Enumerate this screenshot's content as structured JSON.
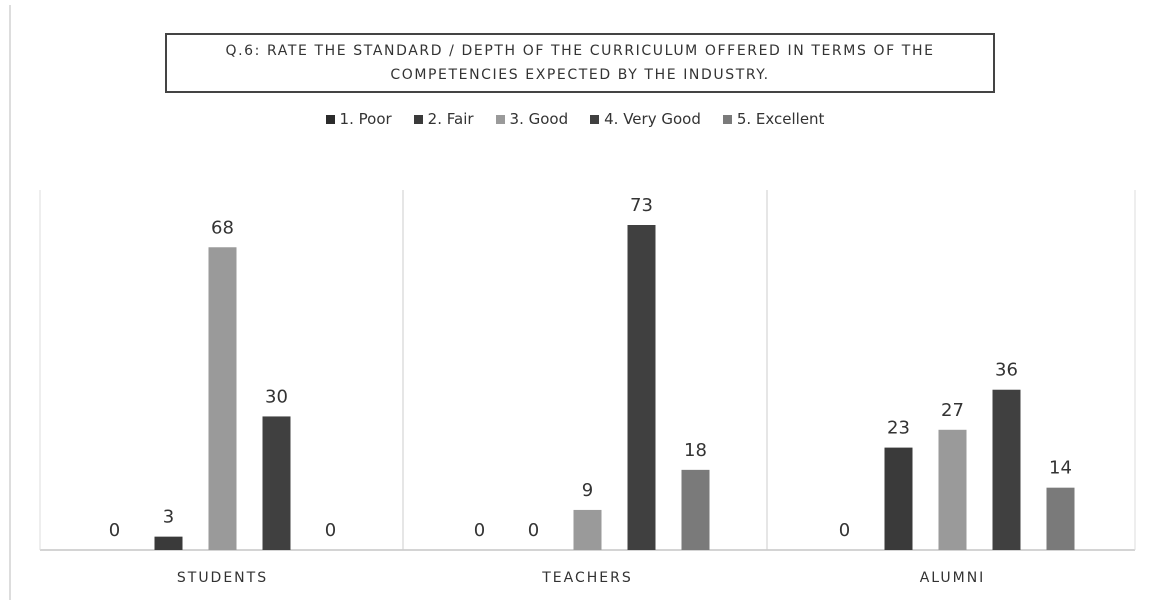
{
  "chart_data": {
    "type": "bar",
    "title": "Q.6: RATE THE STANDARD / DEPTH OF THE CURRICULUM OFFERED IN TERMS OF THE COMPETENCIES EXPECTED BY THE INDUSTRY.",
    "categories": [
      "STUDENTS",
      "TEACHERS",
      "ALUMNI"
    ],
    "series": [
      {
        "name": "1. Poor",
        "color": "#2b2b2b",
        "values": [
          0,
          0,
          0
        ]
      },
      {
        "name": "2. Fair",
        "color": "#3a3a3a",
        "values": [
          3,
          0,
          23
        ]
      },
      {
        "name": "3. Good",
        "color": "#9a9a9a",
        "values": [
          68,
          9,
          27
        ]
      },
      {
        "name": "4. Very Good",
        "color": "#404040",
        "values": [
          30,
          73,
          36
        ]
      },
      {
        "name": "5. Excellent",
        "color": "#7a7a7a",
        "values": [
          0,
          18,
          14
        ]
      }
    ],
    "legend": "top"
  }
}
